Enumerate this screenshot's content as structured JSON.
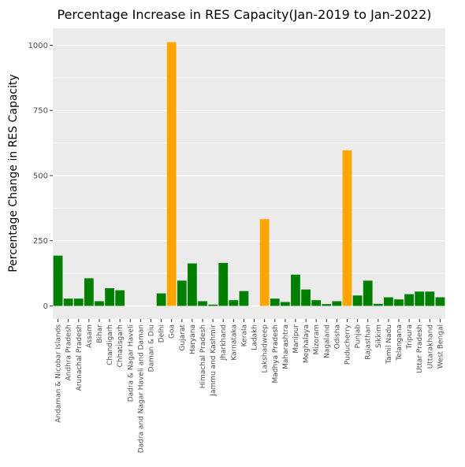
{
  "chart_data": {
    "type": "bar",
    "title": "Percentage Increase in RES Capacity(Jan-2019 to Jan-2022)",
    "xlabel": "",
    "ylabel": "Percentage Change in RES Capacity",
    "ylim": [
      -50,
      1065
    ],
    "yticks": [
      0,
      250,
      500,
      750,
      1000
    ],
    "ytick_labels": [
      "0",
      "250",
      "500",
      "750",
      "1000"
    ],
    "grid": true,
    "legend": "none",
    "colors": {
      "panel_background": "#ebebeb",
      "gridline": "#ffffff",
      "default_bar": "#008000",
      "highlight_bar": "#ffa500"
    },
    "categories": [
      "Andaman & Nicobar Islands",
      "Andhra Pradesh",
      "Arunachal Pradesh",
      "Assam",
      "Bihar",
      "Chandigarh",
      "Chhatisgarh",
      "Dadra & Nagar Haveli",
      "Dadra and Nagar Haveli and Daman",
      "Daman & Diu",
      "Delhi",
      "Goa",
      "Gujarat",
      "Haryana",
      "Himachal Pradesh",
      "Jammu and Kashmir",
      "Jharkhand",
      "Karnataka",
      "Kerala",
      "Ladakh",
      "Lakshadweep",
      "Madhya Pradesh",
      "Maharashtra",
      "Manipur",
      "Meghalaya",
      "Mizoram",
      "Nagaland",
      "Odisha",
      "Puducherry",
      "Punjab",
      "Rajasthan",
      "Sikkim",
      "Tamil Nadu",
      "Telangana",
      "Tripura",
      "Uttar Pradesh",
      "Uttarakhand",
      "West Bengal"
    ],
    "values": [
      193,
      28,
      28,
      106,
      18,
      68,
      60,
      0,
      0,
      0,
      48,
      1012,
      97,
      163,
      18,
      5,
      165,
      22,
      57,
      0,
      333,
      28,
      15,
      120,
      63,
      22,
      7,
      18,
      597,
      40,
      97,
      8,
      33,
      25,
      45,
      55,
      55,
      33
    ],
    "highlighted": [
      "Goa",
      "Lakshadweep",
      "Puducherry"
    ]
  }
}
